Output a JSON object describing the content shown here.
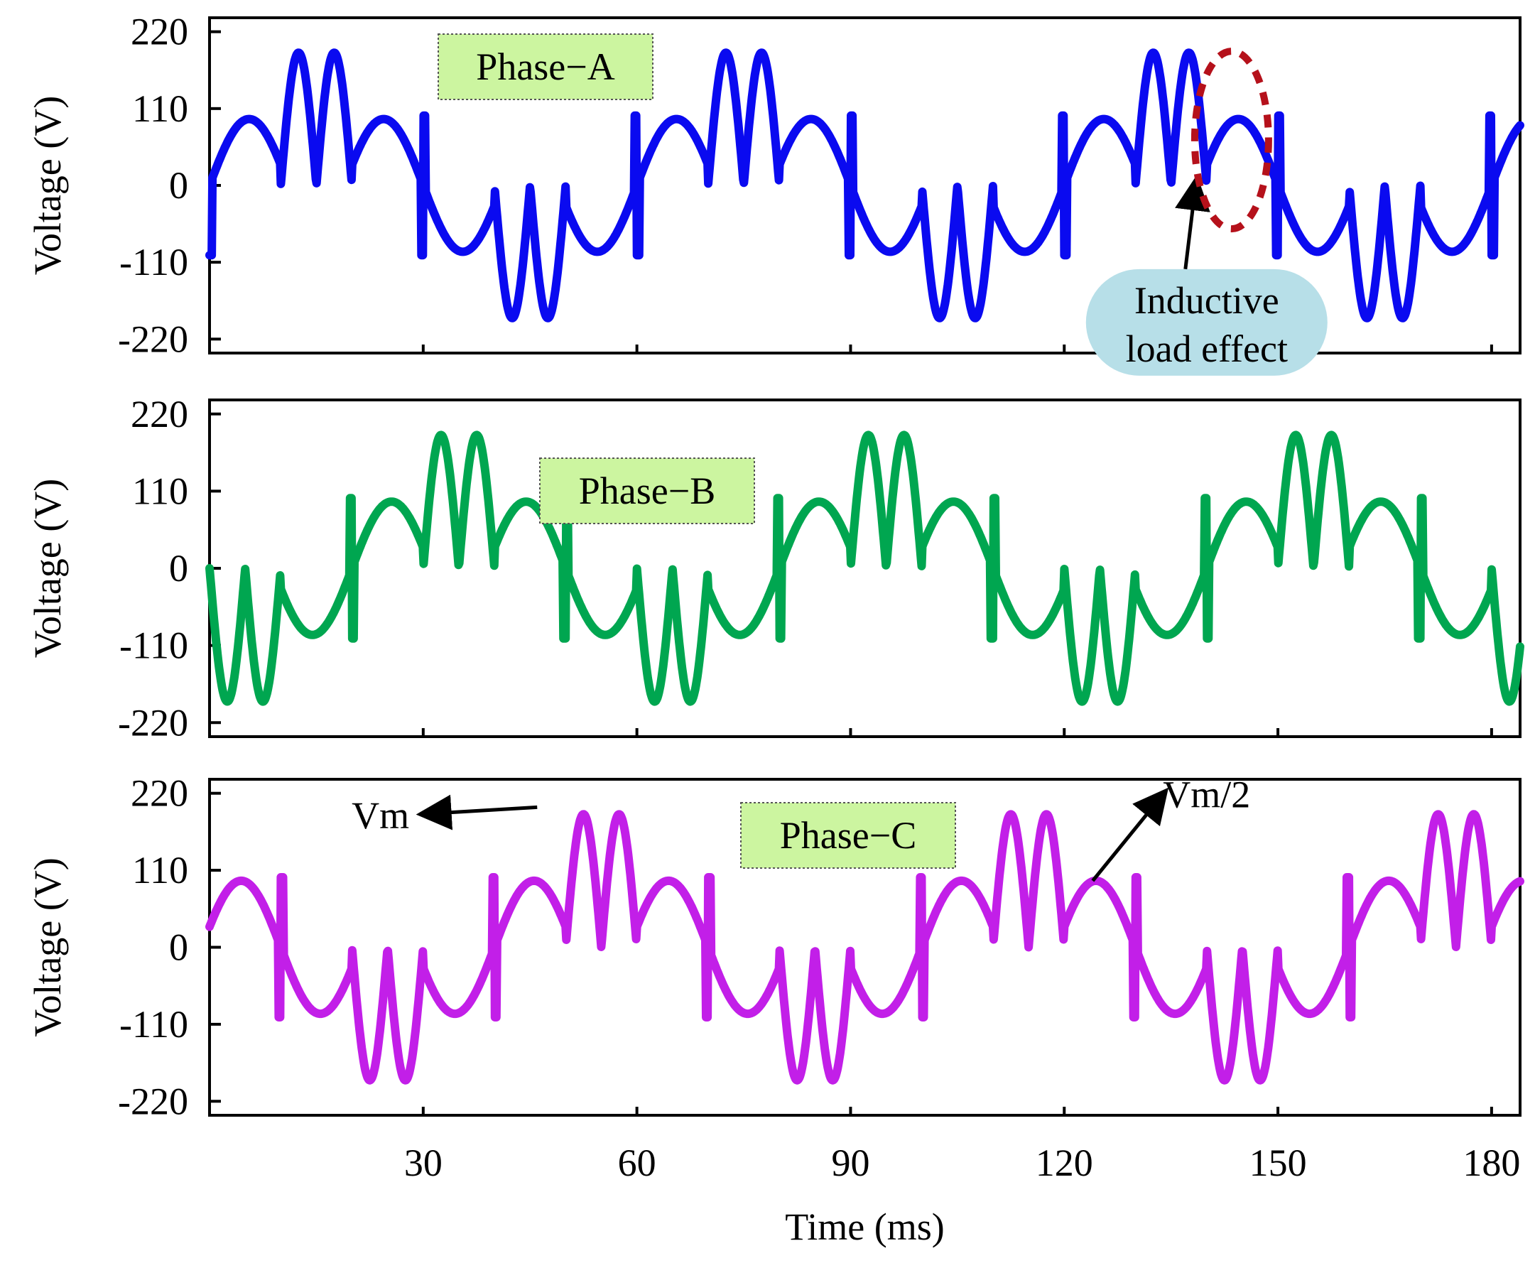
{
  "chart_data": {
    "type": "line",
    "xlabel": "Time (ms)",
    "xlim": [
      0,
      184
    ],
    "xticks": [
      30,
      60,
      90,
      120,
      150,
      180
    ],
    "xtick_labels": [
      "30",
      "60",
      "90",
      "120",
      "150",
      "180"
    ],
    "shared_x_axis": true,
    "panels": [
      {
        "title": "Phase−A",
        "ylabel": "Voltage (V)",
        "ylim": [
          -240,
          240
        ],
        "yticks": [
          220,
          110,
          0,
          -110,
          -220
        ],
        "ytick_labels": [
          "220",
          "110",
          "0",
          "-110",
          "-220"
        ],
        "color": "#0a0af0",
        "label_bg": "#ccf5a0",
        "series": {
          "name": "Phase-A voltage",
          "fundamental_period_ms": 60,
          "phase_offset_deg": 0,
          "peak_volts": 190,
          "half_peak_volts": 95,
          "notch_to_volts": 0,
          "notches_per_half_cycle": 2,
          "pattern_note": "Half cycle: rise to Vm/2, two full-height lobes to Vm (each returning to 0), fall through Vm/2 lobe; switching spikes at 1/6-cycle transitions"
        },
        "annotations": [
          {
            "text_lines": [
              "Inductive",
              "load effect"
            ],
            "bg": "#b7dfe8",
            "x_ms": 140,
            "y_volts": -130,
            "arrow_to_x_ms": 138.5,
            "arrow_to_y_volts": 5
          },
          {
            "shape": "dashed-ellipse",
            "color": "#b5111b",
            "center_x_ms": 143.5,
            "center_y_volts": 65,
            "note": "highlight"
          }
        ]
      },
      {
        "title": "Phase−B",
        "ylabel": "Voltage (V)",
        "ylim": [
          -240,
          240
        ],
        "yticks": [
          220,
          110,
          0,
          -110,
          -220
        ],
        "ytick_labels": [
          "220",
          "110",
          "0",
          "-110",
          "-220"
        ],
        "color": "#00a650",
        "label_bg": "#ccf5a0",
        "series": {
          "name": "Phase-B voltage",
          "fundamental_period_ms": 60,
          "phase_offset_deg": -120,
          "peak_volts": 190,
          "half_peak_volts": 95,
          "notch_to_volts": 0,
          "notches_per_half_cycle": 2
        }
      },
      {
        "title": "Phase−C",
        "ylabel": "Voltage (V)",
        "ylim": [
          -240,
          240
        ],
        "yticks": [
          220,
          110,
          0,
          -110,
          -220
        ],
        "ytick_labels": [
          "220",
          "110",
          "0",
          "-110",
          "-220"
        ],
        "color": "#c21fe8",
        "label_bg": "#ccf5a0",
        "series": {
          "name": "Phase-C voltage",
          "fundamental_period_ms": 60,
          "phase_offset_deg": 120,
          "peak_volts": 190,
          "half_peak_volts": 95,
          "notch_to_volts": 0,
          "notches_per_half_cycle": 2
        },
        "annotations": [
          {
            "text": "Vm",
            "x_ms": 24,
            "y_volts": 170,
            "arrow_from_x_ms": 46,
            "arrow_from_y_volts": 200
          },
          {
            "text": "Vm/2",
            "x_ms": 140,
            "y_volts": 200,
            "arrow_from_x_ms": 124,
            "arrow_from_y_volts": 95
          }
        ]
      }
    ]
  }
}
